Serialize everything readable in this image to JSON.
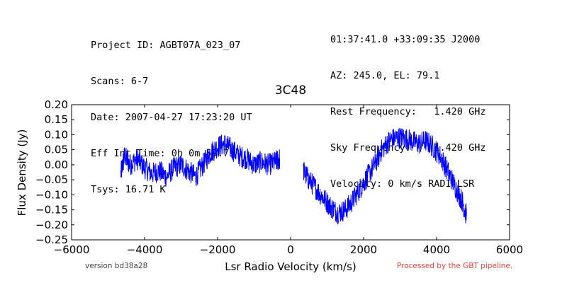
{
  "header": {
    "left_lines": [
      "Project ID: AGBT07A_023_07",
      "Scans: 6-7",
      "Date: 2007-04-27 17:23:20 UT",
      "Eff Int Time: 0h 0m 59.7s",
      "Tsys: 16.71 K"
    ],
    "right_lines": [
      "01:37:41.0 +33:09:35 J2000",
      "AZ: 245.0, EL: 79.1",
      "Rest Frequency:   1.420 GHz",
      "Sky Frequency:    1.420 GHz",
      "Velocity: 0 km/s RADI-LSR"
    ]
  },
  "footer": {
    "version": "version bd38a28",
    "pipeline": "Processed by the GBT pipeline."
  },
  "chart_data": {
    "type": "line",
    "title": "3C48",
    "xlabel": "Lsr Radio Velocity (km/s)",
    "ylabel": "Flux Density (Jy)",
    "xlim": [
      -6000,
      6000
    ],
    "ylim": [
      -0.25,
      0.2
    ],
    "xticks": [
      "−6000",
      "−4000",
      "−2000",
      "0",
      "2000",
      "4000",
      "6000"
    ],
    "yticks": [
      "−0.25",
      "−0.20",
      "−0.15",
      "−0.10",
      "−0.05",
      "0.00",
      "0.05",
      "0.10",
      "0.15",
      "0.20"
    ],
    "grid": false,
    "legend": "none",
    "color": "#0000ff",
    "series": [
      {
        "x": [
          -4650,
          -4550,
          -4400,
          -4200,
          -4000,
          -3800,
          -3600,
          -3400,
          -3200,
          -3000,
          -2800,
          -2600,
          -2400,
          -2200,
          -2000,
          -1800,
          -1600,
          -1400,
          -1200,
          -1000,
          -800,
          -600,
          -400,
          -300
        ],
        "y": [
          -0.03,
          0.03,
          0.0,
          0.02,
          -0.01,
          -0.03,
          -0.02,
          -0.04,
          -0.01,
          0.0,
          -0.02,
          -0.04,
          0.0,
          0.04,
          0.06,
          0.07,
          0.05,
          0.03,
          0.02,
          0.0,
          0.01,
          0.0,
          0.01,
          0.02
        ]
      },
      {
        "x": [
          350,
          500,
          700,
          900,
          1100,
          1300,
          1500,
          1700,
          1900,
          2100,
          2300,
          2500,
          2700,
          2900,
          3100,
          3300,
          3500,
          3700,
          3900,
          4100,
          4300,
          4500,
          4700,
          4820
        ],
        "y": [
          -0.02,
          -0.05,
          -0.08,
          -0.11,
          -0.14,
          -0.16,
          -0.15,
          -0.12,
          -0.08,
          -0.04,
          0.0,
          0.05,
          0.08,
          0.09,
          0.09,
          0.08,
          0.07,
          0.08,
          0.06,
          0.03,
          -0.02,
          -0.07,
          -0.12,
          -0.17
        ]
      }
    ]
  }
}
